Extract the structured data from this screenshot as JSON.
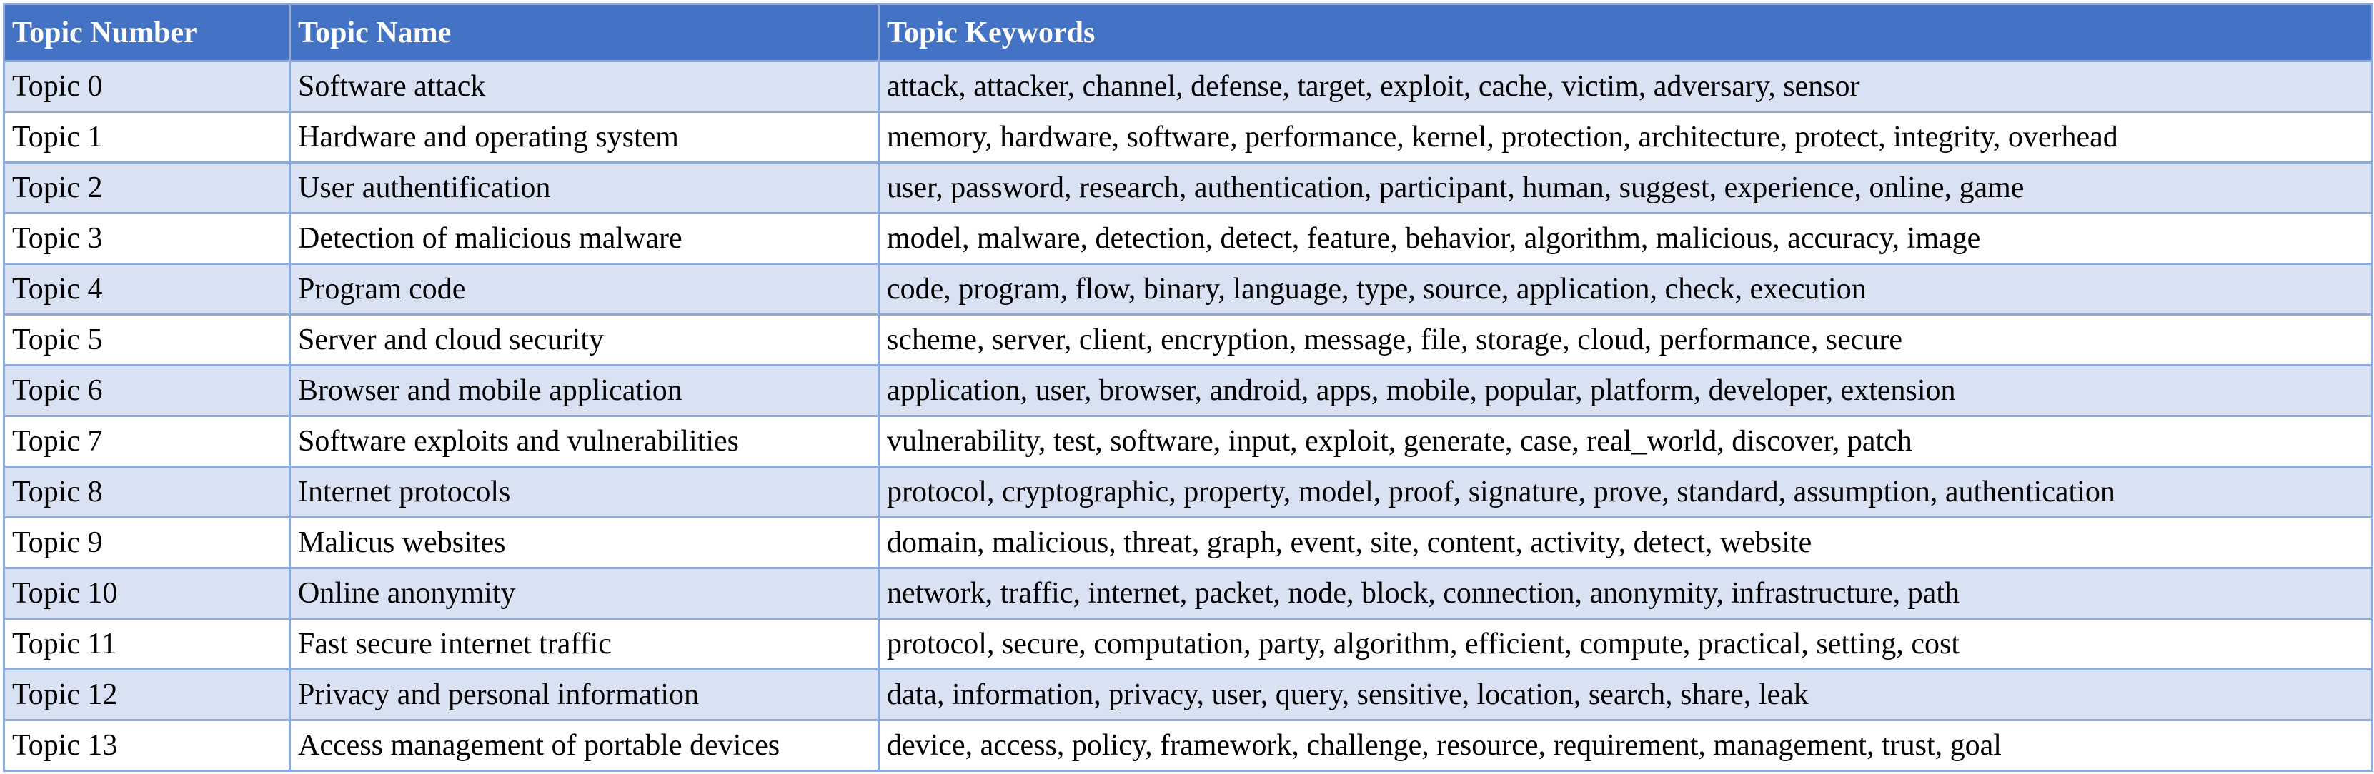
{
  "table": {
    "headers": [
      "Topic Number",
      "Topic Name",
      "Topic Keywords"
    ],
    "rows": [
      [
        "Topic 0",
        "Software attack",
        "attack, attacker, channel, defense, target, exploit, cache, victim, adversary, sensor"
      ],
      [
        "Topic 1",
        "Hardware and operating system",
        "memory, hardware, software, performance, kernel, protection, architecture, protect, integrity, overhead"
      ],
      [
        "Topic 2",
        "User authentification",
        "user, password, research, authentication, participant, human, suggest, experience, online, game"
      ],
      [
        "Topic 3",
        "Detection of malicious malware",
        "model, malware, detection, detect, feature, behavior, algorithm, malicious, accuracy, image"
      ],
      [
        "Topic 4",
        "Program code",
        "code, program, flow, binary, language, type, source, application, check, execution"
      ],
      [
        "Topic 5",
        "Server and cloud security",
        "scheme, server, client, encryption, message, file, storage, cloud, performance, secure"
      ],
      [
        "Topic 6",
        "Browser and mobile application",
        "application, user, browser, android, apps, mobile, popular, platform, developer, extension"
      ],
      [
        "Topic 7",
        "Software exploits and vulnerabilities",
        "vulnerability, test, software, input, exploit, generate, case, real_world, discover, patch"
      ],
      [
        "Topic 8",
        "Internet protocols",
        "protocol, cryptographic, property, model, proof, signature, prove, standard, assumption, authentication"
      ],
      [
        "Topic 9",
        "Malicus websites",
        "domain, malicious, threat, graph, event, site, content, activity, detect, website"
      ],
      [
        "Topic 10",
        "Online anonymity",
        "network, traffic, internet, packet, node, block, connection, anonymity, infrastructure, path"
      ],
      [
        "Topic 11",
        "Fast secure internet traffic",
        "protocol, secure, computation, party, algorithm, efficient, compute, practical, setting, cost"
      ],
      [
        "Topic 12",
        "Privacy and personal information",
        "data, information, privacy, user, query, sensitive, location, search, share, leak"
      ],
      [
        "Topic 13",
        "Access management of portable devices",
        "device, access, policy, framework, challenge, resource, requirement, management, trust, goal"
      ]
    ]
  },
  "colors": {
    "header_bg": "#4472c4",
    "header_text": "#ffffff",
    "band_row": "#d9e2f3",
    "plain_row": "#ffffff",
    "border": "#8eaadb"
  }
}
